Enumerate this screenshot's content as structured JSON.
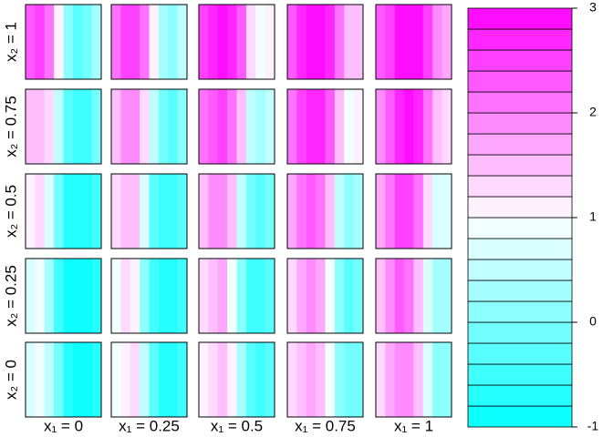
{
  "chart_data": {
    "type": "heatmap-grid",
    "columns": [
      "x₁ = 0",
      "x₁ = 0.25",
      "x₁ = 0.5",
      "x₁ = 0.75",
      "x₁ = 1"
    ],
    "rows": [
      {
        "label": "x₂ = 1",
        "panels": [
          [
            2.2,
            2.5,
            2.0,
            1.1,
            0.0,
            -0.3,
            -0.2,
            0.3
          ],
          [
            2.0,
            2.4,
            2.5,
            2.0,
            1.0,
            0.2,
            0.0,
            0.4
          ],
          [
            2.5,
            2.7,
            2.8,
            2.6,
            2.2,
            1.2,
            0.8,
            1.1
          ],
          [
            2.3,
            2.6,
            2.8,
            2.9,
            2.7,
            2.0,
            1.5,
            1.4
          ],
          [
            2.2,
            2.5,
            2.8,
            3.0,
            2.9,
            2.4,
            1.8,
            1.6
          ]
        ]
      },
      {
        "label": "x₂ = 0.75",
        "panels": [
          [
            1.4,
            1.5,
            1.2,
            0.5,
            -0.3,
            -0.5,
            -0.5,
            -0.2
          ],
          [
            1.5,
            1.8,
            1.9,
            1.3,
            0.4,
            -0.2,
            -0.3,
            0.0
          ],
          [
            2.0,
            2.3,
            2.4,
            2.1,
            1.4,
            0.5,
            0.2,
            0.4
          ],
          [
            2.0,
            2.4,
            2.6,
            2.6,
            2.2,
            1.4,
            0.9,
            1.0
          ],
          [
            1.9,
            2.3,
            2.6,
            2.8,
            2.6,
            2.0,
            1.4,
            1.3
          ]
        ]
      },
      {
        "label": "x₂ = 0.5",
        "panels": [
          [
            1.0,
            1.3,
            0.6,
            -0.2,
            -0.7,
            -0.8,
            -0.8,
            -0.6
          ],
          [
            1.2,
            1.5,
            1.4,
            0.6,
            -0.3,
            -0.6,
            -0.6,
            -0.4
          ],
          [
            1.5,
            1.8,
            1.9,
            1.4,
            0.5,
            -0.2,
            -0.4,
            -0.2
          ],
          [
            1.6,
            2.0,
            2.2,
            2.0,
            1.4,
            0.5,
            0.1,
            0.2
          ],
          [
            1.7,
            2.1,
            2.5,
            2.5,
            2.1,
            1.3,
            0.7,
            0.6
          ]
        ]
      },
      {
        "label": "x₂ = 0.25",
        "panels": [
          [
            0.6,
            0.9,
            0.2,
            -0.5,
            -0.9,
            -1.0,
            -1.0,
            -0.8
          ],
          [
            0.9,
            1.2,
            1.0,
            0.1,
            -0.6,
            -0.8,
            -0.8,
            -0.6
          ],
          [
            1.2,
            1.5,
            1.6,
            0.9,
            0.0,
            -0.5,
            -0.6,
            -0.4
          ],
          [
            1.3,
            1.7,
            1.9,
            1.6,
            0.8,
            0.0,
            -0.3,
            -0.2
          ],
          [
            1.5,
            1.9,
            2.2,
            2.1,
            1.5,
            0.6,
            0.2,
            0.2
          ]
        ]
      },
      {
        "label": "x₂ = 0",
        "panels": [
          [
            0.6,
            0.8,
            0.4,
            -0.2,
            -0.7,
            -0.9,
            -0.9,
            -0.8
          ],
          [
            0.8,
            1.1,
            1.2,
            0.5,
            -0.3,
            -0.7,
            -0.7,
            -0.5
          ],
          [
            1.0,
            1.3,
            1.4,
            1.0,
            0.2,
            -0.3,
            -0.5,
            -0.3
          ],
          [
            1.2,
            1.5,
            1.7,
            1.5,
            0.9,
            0.1,
            -0.2,
            -0.1
          ],
          [
            1.3,
            1.7,
            1.9,
            1.9,
            1.4,
            0.6,
            0.1,
            0.1
          ]
        ]
      }
    ],
    "key_bins": [
      -1,
      -0.8,
      -0.6,
      -0.4,
      -0.2,
      0,
      0.2,
      0.4,
      0.6,
      0.8,
      1,
      1.2,
      1.4,
      1.6,
      1.8,
      2,
      2.2,
      2.4,
      2.6,
      2.8,
      3
    ],
    "zlim": [
      -1,
      3
    ],
    "yticks": [
      -1,
      0,
      1,
      2,
      3
    ],
    "low_color": "#00ffff",
    "mid_color": "#ffffff",
    "high_color": "#ff00ff"
  }
}
